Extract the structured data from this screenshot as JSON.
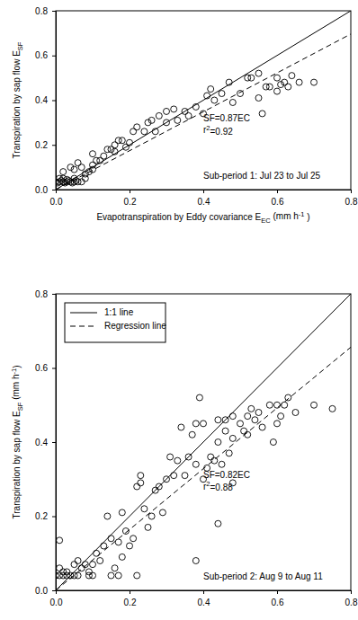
{
  "chart_data": [
    {
      "type": "scatter",
      "xlim": [
        0,
        0.8
      ],
      "ylim": [
        0,
        0.8
      ],
      "xticks": [
        {
          "value": 0,
          "label": "0.0"
        },
        0.2,
        0.4,
        0.6,
        0.8
      ],
      "yticks": [
        {
          "value": 0,
          "label": "0.0"
        },
        0.2,
        0.4,
        0.6,
        0.8
      ],
      "xlabel": [
        {
          "text": "Evapotranspiration by Eddy covariance E"
        },
        {
          "text": "EC",
          "sub": true
        },
        {
          "text": " (mm h"
        },
        {
          "text": "-1",
          "sup": true
        },
        {
          "text": " )"
        }
      ],
      "ylabel": [
        {
          "text": "Transpiration by sap flow E"
        },
        {
          "text": "SF",
          "sub": true
        }
      ],
      "annotations": [
        [
          {
            "text": "SF=0.87EC"
          }
        ],
        [
          {
            "text": "r"
          },
          {
            "text": "2",
            "sup": true
          },
          {
            "text": "=0.92"
          }
        ],
        [
          {
            "text": "Sub-period 1: Jul 23 to Jul 25"
          }
        ]
      ],
      "series": [
        {
          "type": "scatter",
          "marker": "circle-open",
          "color": "#000000",
          "x": [
            0,
            0.005,
            0.01,
            0.015,
            0.02,
            0.025,
            0.03,
            0.035,
            0.04,
            0.045,
            0.05,
            0.055,
            0.06,
            0.07,
            0.01,
            0.02,
            0.03,
            0.05,
            0.02,
            0.04,
            0.05,
            0.06,
            0.07,
            0.08,
            0.08,
            0.09,
            0.1,
            0.1,
            0.11,
            0.1,
            0.12,
            0.13,
            0.14,
            0.15,
            0.16,
            0.17,
            0.18,
            0.16,
            0.19,
            0.2,
            0.21,
            0.22,
            0.24,
            0.25,
            0.26,
            0.27,
            0.28,
            0.3,
            0.3,
            0.32,
            0.33,
            0.35,
            0.36,
            0.38,
            0.4,
            0.41,
            0.42,
            0.43,
            0.45,
            0.47,
            0.48,
            0.5,
            0.52,
            0.53,
            0.55,
            0.56,
            0.57,
            0.58,
            0.6,
            0.61,
            0.62,
            0.64,
            0.66,
            0.7,
            0.6,
            0.55,
            0.63
          ],
          "values": [
            0.035,
            0.03,
            0.035,
            0.04,
            0.035,
            0.03,
            0.035,
            0.04,
            0.035,
            0.03,
            0.035,
            0.04,
            0.035,
            0.035,
            0.05,
            0.05,
            0.045,
            0.05,
            0.08,
            0.1,
            0.09,
            0.12,
            0.1,
            0.05,
            0.07,
            0.08,
            0.09,
            0.11,
            0.13,
            0.16,
            0.13,
            0.15,
            0.18,
            0.18,
            0.2,
            0.22,
            0.22,
            0.17,
            0.19,
            0.21,
            0.26,
            0.28,
            0.26,
            0.3,
            0.31,
            0.26,
            0.33,
            0.3,
            0.35,
            0.36,
            0.31,
            0.35,
            0.33,
            0.37,
            0.34,
            0.42,
            0.45,
            0.4,
            0.43,
            0.48,
            0.39,
            0.43,
            0.5,
            0.5,
            0.41,
            0.34,
            0.46,
            0.46,
            0.44,
            0.47,
            0.48,
            0.51,
            0.48,
            0.48,
            0.5,
            0.52,
            0.46
          ]
        },
        {
          "type": "line",
          "line_style": "solid",
          "color": "#000000",
          "x": [
            0,
            0.8
          ],
          "values": [
            0,
            0.8
          ]
        },
        {
          "type": "line",
          "line_style": "dashed",
          "color": "#000000",
          "x": [
            0,
            0.8
          ],
          "values": [
            0,
            0.696
          ]
        }
      ]
    },
    {
      "type": "scatter",
      "xlim": [
        0,
        0.8
      ],
      "ylim": [
        0,
        0.8
      ],
      "xticks": [
        {
          "value": 0,
          "label": "0.0"
        },
        0.2,
        0.4,
        0.6,
        0.8
      ],
      "yticks": [
        {
          "value": 0,
          "label": "0.0"
        },
        0.2,
        0.4,
        0.6,
        0.8
      ],
      "ylabel": [
        {
          "text": "Transpiration by sap flow E"
        },
        {
          "text": "SF",
          "sub": true
        },
        {
          "text": " (mm h"
        },
        {
          "text": "-1",
          "sup": true
        },
        {
          "text": ")"
        }
      ],
      "legend": "upper left",
      "annotations": [
        [
          {
            "text": "SF=0.82EC"
          }
        ],
        [
          {
            "text": "r"
          },
          {
            "text": "2",
            "sup": true
          },
          {
            "text": "=0.88"
          }
        ],
        [
          {
            "text": "Sub-period 2: Aug 9 to Aug 11"
          }
        ]
      ],
      "series": [
        {
          "type": "scatter",
          "marker": "circle-open",
          "color": "#000000",
          "x": [
            0,
            0.01,
            0.02,
            0.03,
            0.04,
            0.05,
            0.06,
            0.09,
            0.1,
            0.01,
            0.02,
            0.03,
            0.01,
            0.05,
            0.06,
            0.07,
            0.08,
            0.09,
            0.1,
            0.11,
            0.12,
            0.13,
            0.14,
            0.15,
            0.15,
            0.16,
            0.17,
            0.17,
            0.18,
            0.18,
            0.19,
            0.2,
            0.21,
            0.22,
            0.22,
            0.23,
            0.23,
            0.24,
            0.25,
            0.26,
            0.27,
            0.28,
            0.29,
            0.3,
            0.31,
            0.32,
            0.33,
            0.34,
            0.35,
            0.36,
            0.37,
            0.38,
            0.38,
            0.38,
            0.39,
            0.4,
            0.4,
            0.41,
            0.42,
            0.43,
            0.44,
            0.44,
            0.44,
            0.45,
            0.46,
            0.47,
            0.48,
            0.48,
            0.5,
            0.51,
            0.52,
            0.53,
            0.54,
            0.55,
            0.56,
            0.58,
            0.59,
            0.6,
            0.6,
            0.61,
            0.62,
            0.63,
            0.65,
            0.7,
            0.75,
            0.52,
            0.48,
            0.46
          ],
          "values": [
            0.04,
            0.04,
            0.04,
            0.04,
            0.04,
            0.04,
            0.04,
            0.04,
            0.04,
            0.06,
            0.05,
            0.05,
            0.135,
            0.07,
            0.08,
            0.06,
            0.07,
            0.05,
            0.07,
            0.1,
            0.08,
            0.12,
            0.2,
            0.14,
            0.04,
            0.06,
            0.04,
            0.13,
            0.09,
            0.21,
            0.16,
            0.12,
            0.14,
            0.04,
            0.28,
            0.31,
            0.29,
            0.22,
            0.17,
            0.2,
            0.27,
            0.28,
            0.21,
            0.3,
            0.36,
            0.31,
            0.35,
            0.44,
            0.31,
            0.36,
            0.42,
            0.08,
            0.34,
            0.45,
            0.52,
            0.45,
            0.3,
            0.33,
            0.36,
            0.35,
            0.4,
            0.46,
            0.18,
            0.34,
            0.46,
            0.37,
            0.29,
            0.41,
            0.45,
            0.43,
            0.47,
            0.49,
            0.46,
            0.48,
            0.44,
            0.5,
            0.4,
            0.45,
            0.5,
            0.47,
            0.5,
            0.52,
            0.48,
            0.5,
            0.49,
            0.42,
            0.47,
            0.43
          ]
        },
        {
          "type": "line",
          "name": "1:1 line",
          "line_style": "solid",
          "color": "#000000",
          "x": [
            0,
            0.8
          ],
          "values": [
            0,
            0.8
          ]
        },
        {
          "type": "line",
          "name": "Regression line",
          "line_style": "dashed",
          "color": "#000000",
          "x": [
            0,
            0.8
          ],
          "values": [
            0,
            0.656
          ]
        }
      ]
    }
  ]
}
